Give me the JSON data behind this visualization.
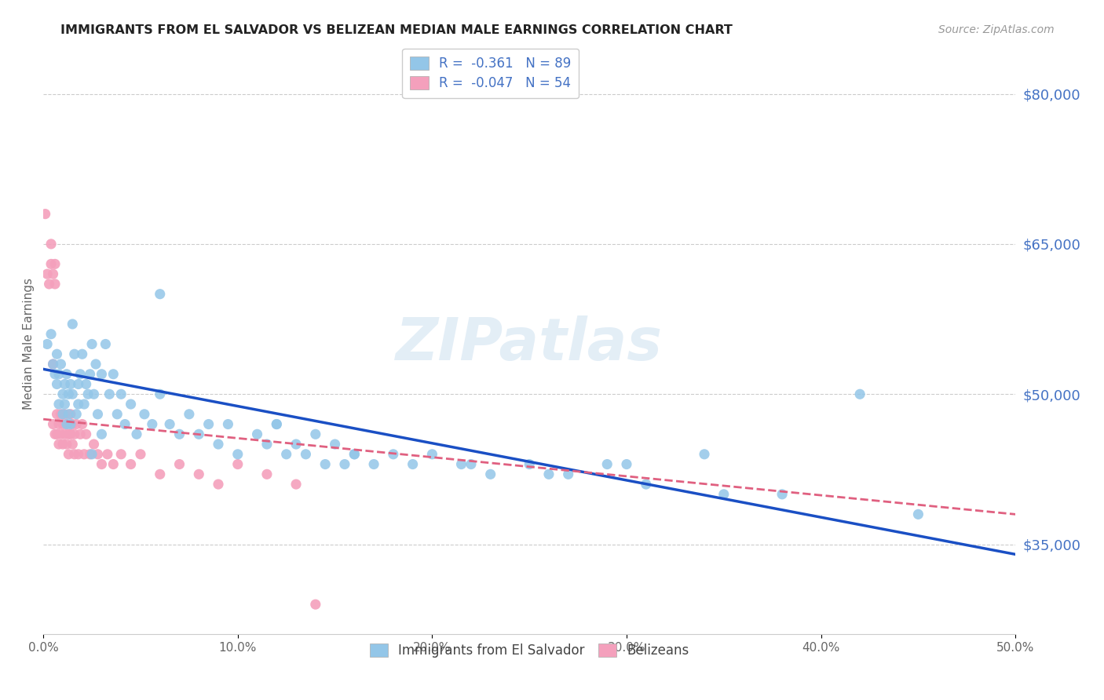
{
  "title": "IMMIGRANTS FROM EL SALVADOR VS BELIZEAN MEDIAN MALE EARNINGS CORRELATION CHART",
  "source": "Source: ZipAtlas.com",
  "ylabel": "Median Male Earnings",
  "xlim": [
    0.0,
    0.5
  ],
  "ylim": [
    26000,
    84000
  ],
  "yticks": [
    35000,
    50000,
    65000,
    80000
  ],
  "ytick_labels": [
    "$35,000",
    "$50,000",
    "$65,000",
    "$80,000"
  ],
  "xticks": [
    0.0,
    0.1,
    0.2,
    0.3,
    0.4,
    0.5
  ],
  "xtick_labels": [
    "0.0%",
    "10.0%",
    "20.0%",
    "30.0%",
    "40.0%",
    "50.0%"
  ],
  "blue_R": "-0.361",
  "blue_N": "89",
  "pink_R": "-0.047",
  "pink_N": "54",
  "blue_dot_color": "#93c6e8",
  "pink_dot_color": "#f4a0bc",
  "trend_blue": "#1a4fc4",
  "trend_pink": "#e06080",
  "watermark": "ZIPatlas",
  "legend_label_blue": "Immigrants from El Salvador",
  "legend_label_pink": "Belizeans",
  "blue_trend_x0": 0.0,
  "blue_trend_y0": 52500,
  "blue_trend_x1": 0.5,
  "blue_trend_y1": 34000,
  "pink_trend_x0": 0.0,
  "pink_trend_y0": 47500,
  "pink_trend_x1": 0.5,
  "pink_trend_y1": 38000,
  "blue_x": [
    0.002,
    0.004,
    0.005,
    0.006,
    0.007,
    0.007,
    0.008,
    0.008,
    0.009,
    0.01,
    0.01,
    0.011,
    0.011,
    0.012,
    0.012,
    0.013,
    0.013,
    0.014,
    0.014,
    0.015,
    0.015,
    0.016,
    0.017,
    0.018,
    0.018,
    0.019,
    0.02,
    0.021,
    0.022,
    0.023,
    0.024,
    0.025,
    0.026,
    0.027,
    0.028,
    0.03,
    0.032,
    0.034,
    0.036,
    0.038,
    0.04,
    0.042,
    0.045,
    0.048,
    0.052,
    0.056,
    0.06,
    0.065,
    0.07,
    0.075,
    0.08,
    0.085,
    0.09,
    0.095,
    0.1,
    0.11,
    0.115,
    0.12,
    0.125,
    0.13,
    0.135,
    0.14,
    0.145,
    0.15,
    0.155,
    0.16,
    0.17,
    0.18,
    0.19,
    0.2,
    0.215,
    0.23,
    0.25,
    0.27,
    0.29,
    0.31,
    0.34,
    0.38,
    0.42,
    0.45,
    0.025,
    0.03,
    0.06,
    0.12,
    0.16,
    0.22,
    0.26,
    0.3,
    0.35
  ],
  "blue_y": [
    55000,
    56000,
    53000,
    52000,
    51000,
    54000,
    52000,
    49000,
    53000,
    50000,
    48000,
    51000,
    49000,
    52000,
    47000,
    50000,
    48000,
    51000,
    47000,
    50000,
    57000,
    54000,
    48000,
    51000,
    49000,
    52000,
    54000,
    49000,
    51000,
    50000,
    52000,
    55000,
    50000,
    53000,
    48000,
    52000,
    55000,
    50000,
    52000,
    48000,
    50000,
    47000,
    49000,
    46000,
    48000,
    47000,
    50000,
    47000,
    46000,
    48000,
    46000,
    47000,
    45000,
    47000,
    44000,
    46000,
    45000,
    47000,
    44000,
    45000,
    44000,
    46000,
    43000,
    45000,
    43000,
    44000,
    43000,
    44000,
    43000,
    44000,
    43000,
    42000,
    43000,
    42000,
    43000,
    41000,
    44000,
    40000,
    50000,
    38000,
    44000,
    46000,
    60000,
    47000,
    44000,
    43000,
    42000,
    43000,
    40000
  ],
  "pink_x": [
    0.001,
    0.002,
    0.003,
    0.004,
    0.004,
    0.005,
    0.005,
    0.006,
    0.006,
    0.007,
    0.007,
    0.008,
    0.008,
    0.009,
    0.009,
    0.01,
    0.01,
    0.011,
    0.011,
    0.012,
    0.012,
    0.013,
    0.013,
    0.014,
    0.014,
    0.015,
    0.015,
    0.016,
    0.016,
    0.017,
    0.018,
    0.019,
    0.02,
    0.021,
    0.022,
    0.024,
    0.026,
    0.028,
    0.03,
    0.033,
    0.036,
    0.04,
    0.045,
    0.05,
    0.06,
    0.07,
    0.08,
    0.09,
    0.1,
    0.115,
    0.13,
    0.005,
    0.006,
    0.14
  ],
  "pink_y": [
    68000,
    62000,
    61000,
    63000,
    65000,
    62000,
    47000,
    63000,
    46000,
    48000,
    46000,
    47000,
    45000,
    46000,
    48000,
    47000,
    45000,
    48000,
    46000,
    47000,
    45000,
    46000,
    44000,
    48000,
    46000,
    45000,
    47000,
    46000,
    44000,
    47000,
    44000,
    46000,
    47000,
    44000,
    46000,
    44000,
    45000,
    44000,
    43000,
    44000,
    43000,
    44000,
    43000,
    44000,
    42000,
    43000,
    42000,
    41000,
    43000,
    42000,
    41000,
    53000,
    61000,
    29000
  ]
}
